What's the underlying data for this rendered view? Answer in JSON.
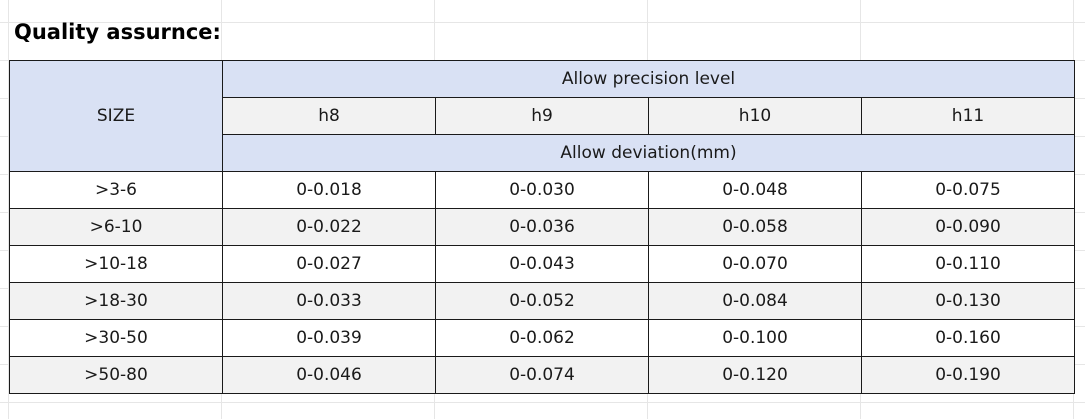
{
  "title": "Quality assurnce:",
  "table": {
    "size_header": "SIZE",
    "precision_header": "Allow precision level",
    "deviation_header": "Allow deviation(mm)",
    "grades": [
      "h8",
      "h9",
      "h10",
      "h11"
    ],
    "rows": [
      {
        "size": ">3-6",
        "values": [
          "0-0.018",
          "0-0.030",
          "0-0.048",
          "0-0.075"
        ]
      },
      {
        "size": ">6-10",
        "values": [
          "0-0.022",
          "0-0.036",
          "0-0.058",
          "0-0.090"
        ]
      },
      {
        "size": ">10-18",
        "values": [
          "0-0.027",
          "0-0.043",
          "0-0.070",
          "0-0.110"
        ]
      },
      {
        "size": ">18-30",
        "values": [
          "0-0.033",
          "0-0.052",
          "0-0.084",
          "0-0.130"
        ]
      },
      {
        "size": ">30-50",
        "values": [
          "0-0.039",
          "0-0.062",
          "0-0.100",
          "0-0.160"
        ]
      },
      {
        "size": ">50-80",
        "values": [
          "0-0.046",
          "0-0.074",
          "0-0.120",
          "0-0.190"
        ]
      }
    ]
  },
  "colors": {
    "header_fill": "#d9e1f4",
    "alt_row_fill": "#f2f2f2",
    "border": "#1a1a1a"
  }
}
